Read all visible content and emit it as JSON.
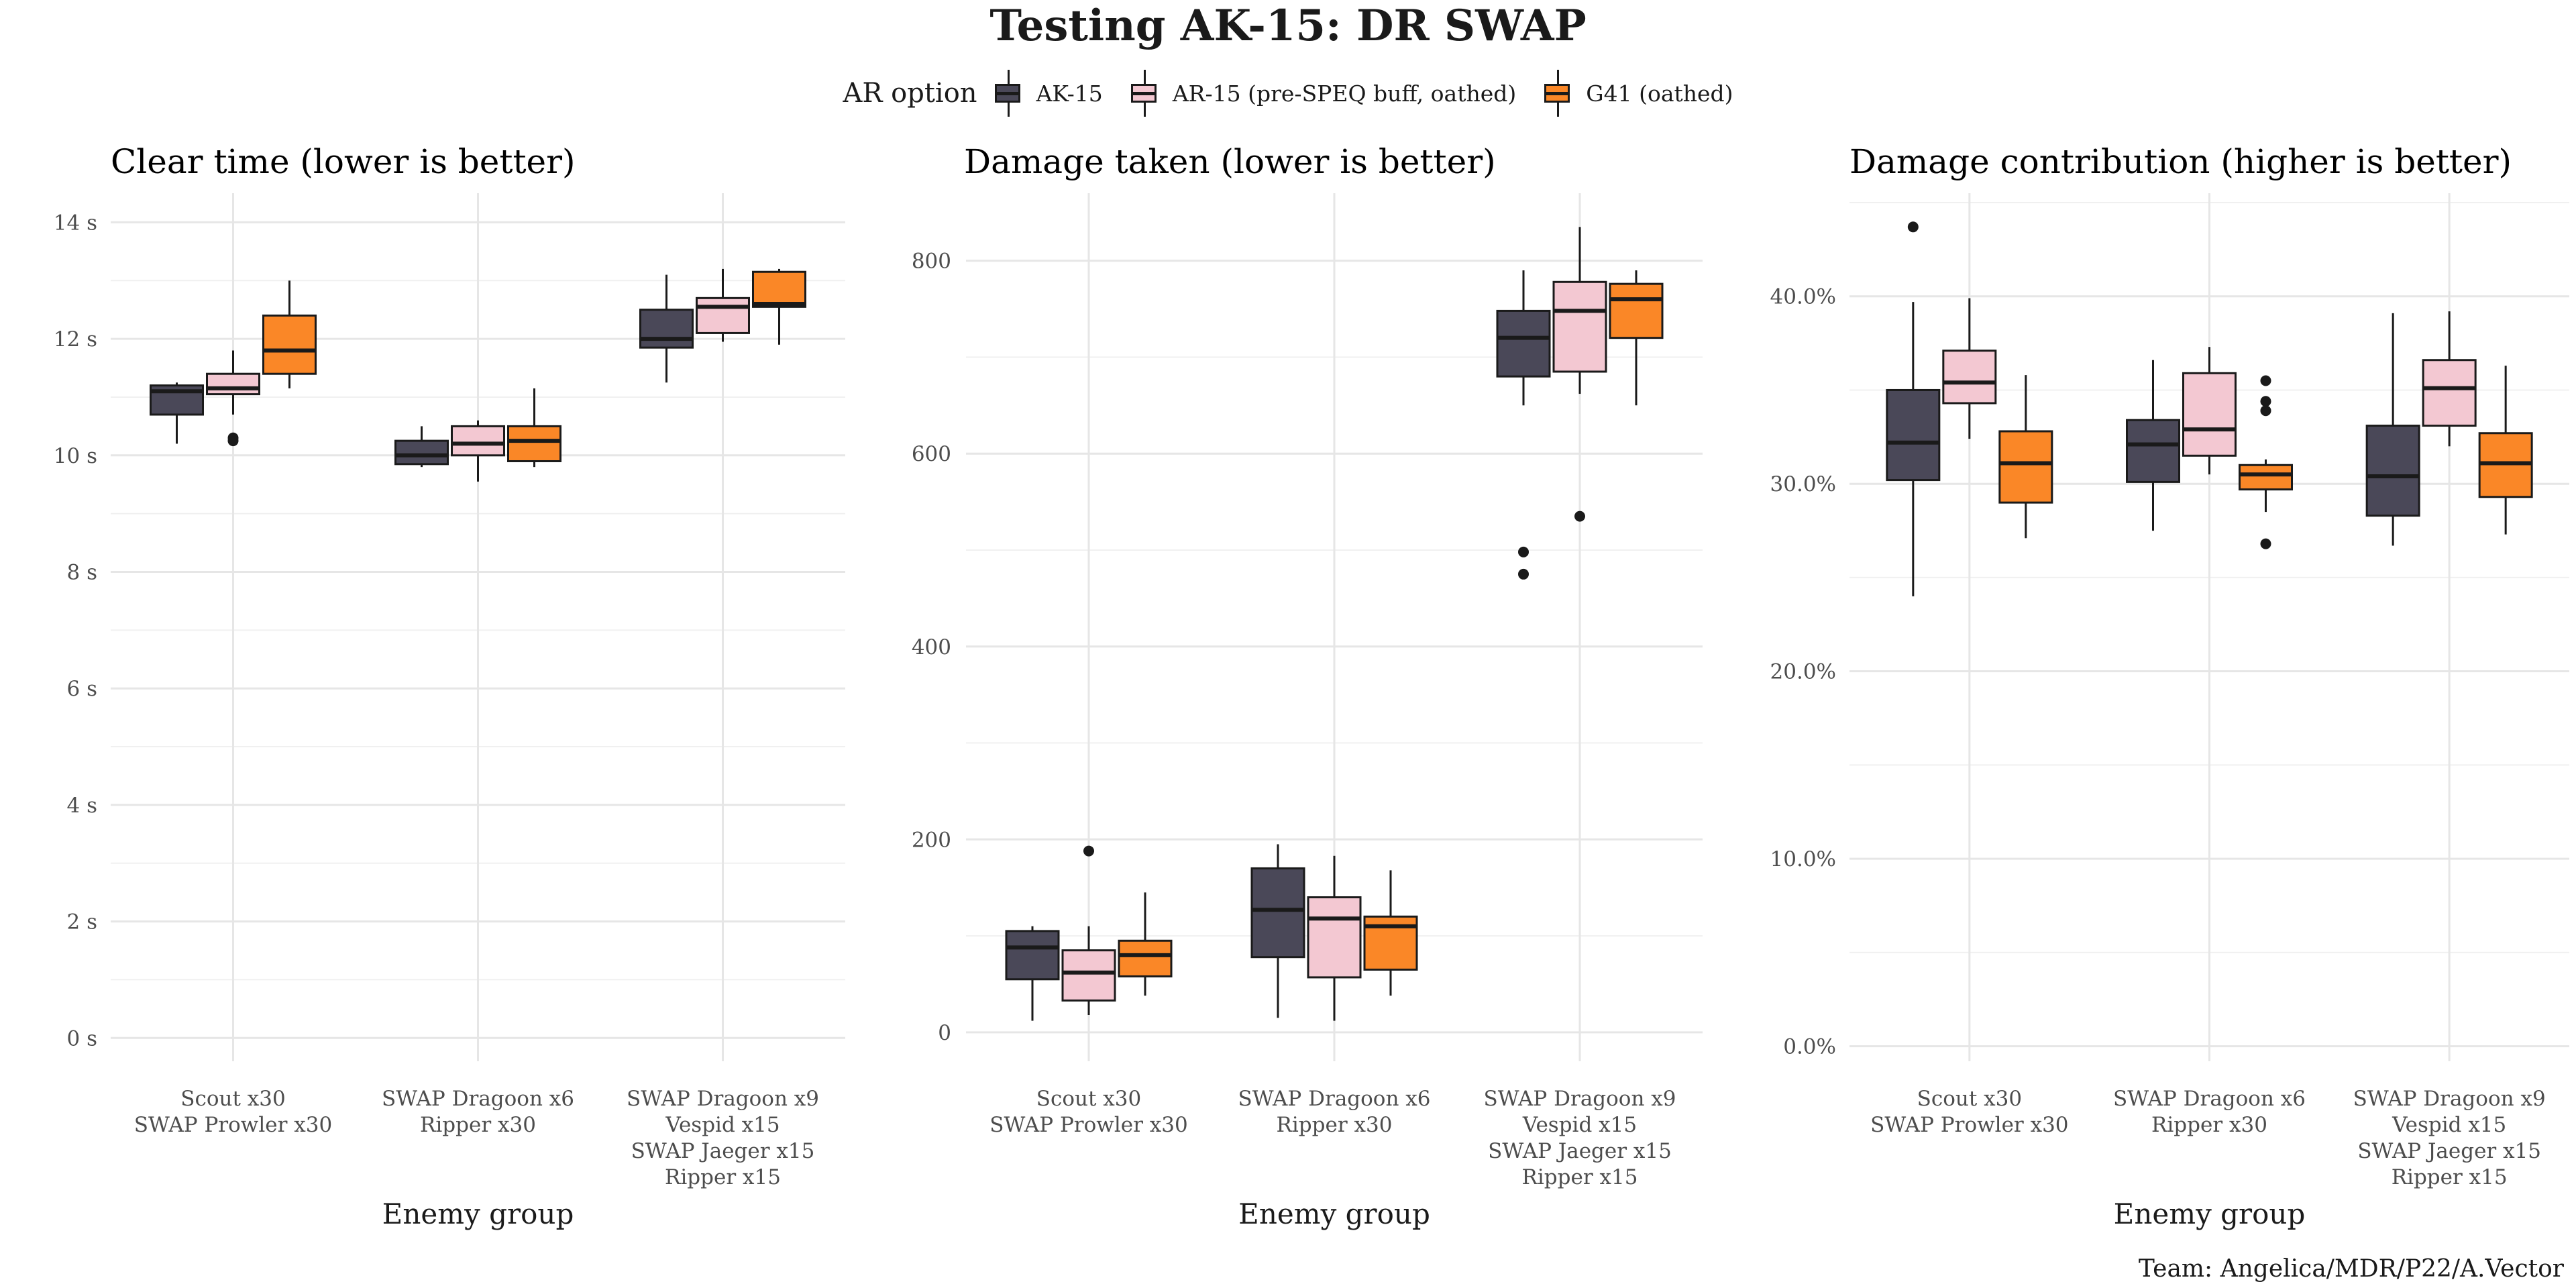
{
  "title": "Testing AK-15: DR SWAP",
  "legend": {
    "title": "AR option",
    "items": [
      {
        "label": "AK-15",
        "color": "#4a4858"
      },
      {
        "label": "AR-15 (pre-SPEQ buff, oathed)",
        "color": "#f3c8d2"
      },
      {
        "label": "G41 (oathed)",
        "color": "#fa8727"
      }
    ]
  },
  "caption": "Team: Angelica/MDR/P22/A.Vector",
  "chart_data": [
    {
      "type": "box",
      "title": "Clear time (lower is better)",
      "xlabel": "Enemy group",
      "ylabel": "",
      "ylim": [
        -0.4,
        14.5
      ],
      "yticks": [
        0,
        2,
        4,
        6,
        8,
        10,
        12,
        14
      ],
      "ytick_labels": [
        "0 s",
        "2 s",
        "4 s",
        "6 s",
        "8 s",
        "10 s",
        "12 s",
        "14 s"
      ],
      "categories": [
        [
          "Scout x30",
          "SWAP Prowler x30"
        ],
        [
          "SWAP Dragoon x6",
          "Ripper x30"
        ],
        [
          "SWAP Dragoon x9",
          "Vespid x15",
          "SWAP Jaeger x15",
          "Ripper x15"
        ]
      ],
      "series": [
        {
          "name": "AK-15",
          "boxes": [
            {
              "min": 10.2,
              "q1": 10.7,
              "median": 11.1,
              "q3": 11.2,
              "max": 11.25,
              "outliers": []
            },
            {
              "min": 9.8,
              "q1": 9.85,
              "median": 10.0,
              "q3": 10.25,
              "max": 10.5,
              "outliers": []
            },
            {
              "min": 11.25,
              "q1": 11.85,
              "median": 12.0,
              "q3": 12.5,
              "max": 13.1,
              "outliers": []
            }
          ]
        },
        {
          "name": "AR-15 (pre-SPEQ buff, oathed)",
          "boxes": [
            {
              "min": 10.7,
              "q1": 11.05,
              "median": 11.15,
              "q3": 11.4,
              "max": 11.8,
              "outliers": [
                10.25,
                10.3
              ]
            },
            {
              "min": 9.55,
              "q1": 10.0,
              "median": 10.2,
              "q3": 10.5,
              "max": 10.6,
              "outliers": []
            },
            {
              "min": 11.95,
              "q1": 12.1,
              "median": 12.55,
              "q3": 12.7,
              "max": 13.2,
              "outliers": []
            }
          ]
        },
        {
          "name": "G41 (oathed)",
          "boxes": [
            {
              "min": 11.15,
              "q1": 11.4,
              "median": 11.8,
              "q3": 12.4,
              "max": 13.0,
              "outliers": []
            },
            {
              "min": 9.8,
              "q1": 9.9,
              "median": 10.25,
              "q3": 10.5,
              "max": 11.15,
              "outliers": []
            },
            {
              "min": 11.9,
              "q1": 12.55,
              "median": 12.6,
              "q3": 13.15,
              "max": 13.2,
              "outliers": []
            }
          ]
        }
      ]
    },
    {
      "type": "box",
      "title": "Damage taken (lower is better)",
      "xlabel": "Enemy group",
      "ylabel": "",
      "ylim": [
        -30,
        870
      ],
      "yticks": [
        0,
        200,
        400,
        600,
        800
      ],
      "ytick_labels": [
        "0",
        "200",
        "400",
        "600",
        "800"
      ],
      "categories": [
        [
          "Scout x30",
          "SWAP Prowler x30"
        ],
        [
          "SWAP Dragoon x6",
          "Ripper x30"
        ],
        [
          "SWAP Dragoon x9",
          "Vespid x15",
          "SWAP Jaeger x15",
          "Ripper x15"
        ]
      ],
      "series": [
        {
          "name": "AK-15",
          "boxes": [
            {
              "min": 12,
              "q1": 55,
              "median": 88,
              "q3": 105,
              "max": 110,
              "outliers": []
            },
            {
              "min": 15,
              "q1": 78,
              "median": 127,
              "q3": 170,
              "max": 195,
              "outliers": []
            },
            {
              "min": 650,
              "q1": 680,
              "median": 720,
              "q3": 748,
              "max": 790,
              "outliers": [
                498,
                475
              ]
            }
          ]
        },
        {
          "name": "AR-15 (pre-SPEQ buff, oathed)",
          "boxes": [
            {
              "min": 18,
              "q1": 33,
              "median": 62,
              "q3": 85,
              "max": 110,
              "outliers": [
                188
              ]
            },
            {
              "min": 12,
              "q1": 57,
              "median": 118,
              "q3": 140,
              "max": 183,
              "outliers": []
            },
            {
              "min": 662,
              "q1": 685,
              "median": 748,
              "q3": 778,
              "max": 835,
              "outliers": [
                535
              ]
            }
          ]
        },
        {
          "name": "G41 (oathed)",
          "boxes": [
            {
              "min": 38,
              "q1": 58,
              "median": 80,
              "q3": 95,
              "max": 145,
              "outliers": []
            },
            {
              "min": 38,
              "q1": 65,
              "median": 110,
              "q3": 120,
              "max": 168,
              "outliers": []
            },
            {
              "min": 650,
              "q1": 720,
              "median": 760,
              "q3": 776,
              "max": 790,
              "outliers": []
            }
          ]
        }
      ]
    },
    {
      "type": "box",
      "title": "Damage contribution (higher is better)",
      "xlabel": "Enemy group",
      "ylabel": "",
      "ylim": [
        -0.8,
        45.5
      ],
      "yticks": [
        0,
        10,
        20,
        30,
        40
      ],
      "ytick_labels": [
        "0.0%",
        "10.0%",
        "20.0%",
        "30.0%",
        "40.0%"
      ],
      "categories": [
        [
          "Scout x30",
          "SWAP Prowler x30"
        ],
        [
          "SWAP Dragoon x6",
          "Ripper x30"
        ],
        [
          "SWAP Dragoon x9",
          "Vespid x15",
          "SWAP Jaeger x15",
          "Ripper x15"
        ]
      ],
      "series": [
        {
          "name": "AK-15",
          "boxes": [
            {
              "min": 24.0,
              "q1": 30.2,
              "median": 32.2,
              "q3": 35.0,
              "max": 39.7,
              "outliers": [
                43.7
              ]
            },
            {
              "min": 27.5,
              "q1": 30.1,
              "median": 32.1,
              "q3": 33.4,
              "max": 36.6,
              "outliers": []
            },
            {
              "min": 26.7,
              "q1": 28.3,
              "median": 30.4,
              "q3": 33.1,
              "max": 39.1,
              "outliers": []
            }
          ]
        },
        {
          "name": "AR-15 (pre-SPEQ buff, oathed)",
          "boxes": [
            {
              "min": 32.4,
              "q1": 34.3,
              "median": 35.4,
              "q3": 37.1,
              "max": 39.9,
              "outliers": []
            },
            {
              "min": 30.5,
              "q1": 31.5,
              "median": 32.9,
              "q3": 35.9,
              "max": 37.3,
              "outliers": []
            },
            {
              "min": 32.0,
              "q1": 33.1,
              "median": 35.1,
              "q3": 36.6,
              "max": 39.2,
              "outliers": []
            }
          ]
        },
        {
          "name": "G41 (oathed)",
          "boxes": [
            {
              "min": 27.1,
              "q1": 29.0,
              "median": 31.1,
              "q3": 32.8,
              "max": 35.8,
              "outliers": []
            },
            {
              "min": 28.5,
              "q1": 29.7,
              "median": 30.5,
              "q3": 31.0,
              "max": 31.3,
              "outliers": [
                26.8,
                35.5,
                34.4,
                33.9
              ]
            },
            {
              "min": 27.3,
              "q1": 29.3,
              "median": 31.1,
              "q3": 32.7,
              "max": 36.3,
              "outliers": []
            }
          ]
        }
      ]
    }
  ]
}
